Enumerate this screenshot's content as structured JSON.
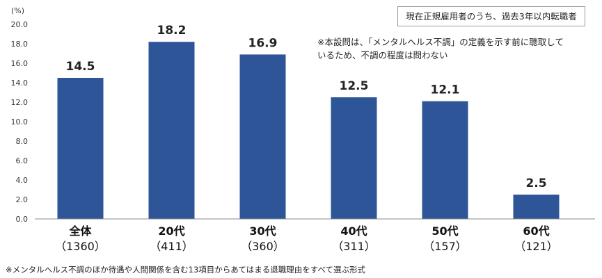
{
  "chart_data": {
    "type": "bar",
    "unit": "(%)",
    "categories": [
      {
        "label": "全体",
        "n": "（1360）"
      },
      {
        "label": "20代",
        "n": "（411）"
      },
      {
        "label": "30代",
        "n": "（360）"
      },
      {
        "label": "40代",
        "n": "（311）"
      },
      {
        "label": "50代",
        "n": "（157）"
      },
      {
        "label": "60代",
        "n": "（121）"
      }
    ],
    "values": [
      14.5,
      18.2,
      16.9,
      12.5,
      12.1,
      2.5
    ],
    "value_labels": [
      "14.5",
      "18.2",
      "16.9",
      "12.5",
      "12.1",
      "2.5"
    ],
    "ylim": [
      0,
      20
    ],
    "yticks": [
      "0.0",
      "2.0",
      "4.0",
      "6.0",
      "8.0",
      "10.0",
      "12.0",
      "14.0",
      "16.0",
      "18.0",
      "20.0"
    ],
    "bar_color": "#2e5597",
    "grid": false
  },
  "scope_label": "現在正規雇用者のうち、過去3年以内転職者",
  "note_line1": "※本設問は、「メンタルヘルス不調」の定義を示す前に聴取して",
  "note_line2": "いるため、不調の程度は問わない",
  "footnote": "※メンタルヘルス不調のほか待遇や人間関係を含む13項目からあてはまる退職理由をすべて選ぶ形式"
}
